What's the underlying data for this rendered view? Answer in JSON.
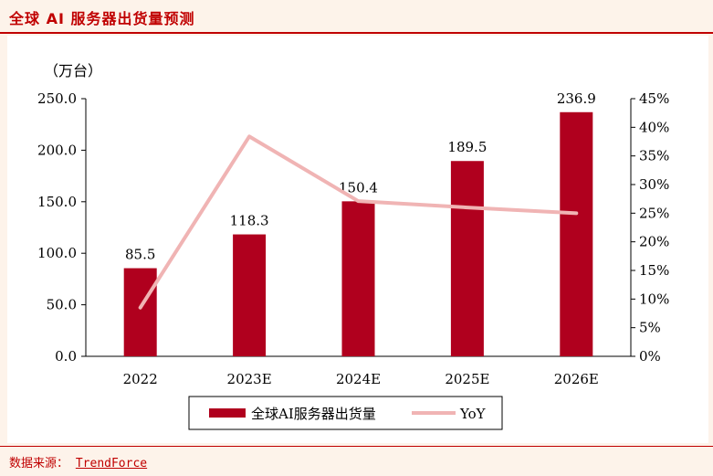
{
  "page": {
    "title": "全球 AI 服务器出货量预测",
    "footer_label": "数据来源：",
    "footer_source": "TrendForce"
  },
  "chart_data": {
    "type": "bar",
    "unit_label": "（万台）",
    "categories": [
      "2022",
      "2023E",
      "2024E",
      "2025E",
      "2026E"
    ],
    "series": [
      {
        "name": "全球AI服务器出货量",
        "type": "bar",
        "axis": "left",
        "color": "#b0001e",
        "values": [
          85.5,
          118.3,
          150.4,
          189.5,
          236.9
        ],
        "value_labels": [
          "85.5",
          "118.3",
          "150.4",
          "189.5",
          "236.9"
        ]
      },
      {
        "name": "YoY",
        "type": "line",
        "axis": "right",
        "color": "#f0b4b4",
        "values": [
          8.5,
          38.4,
          27.1,
          26.0,
          25.0
        ]
      }
    ],
    "y_left": {
      "min": 0,
      "max": 250,
      "ticks": [
        "0.0",
        "50.0",
        "100.0",
        "150.0",
        "200.0",
        "250.0"
      ]
    },
    "y_right": {
      "min": 0,
      "max": 45,
      "ticks": [
        "0%",
        "5%",
        "10%",
        "15%",
        "20%",
        "25%",
        "30%",
        "35%",
        "40%",
        "45%"
      ]
    },
    "grid": false,
    "legend_position": "bottom"
  }
}
